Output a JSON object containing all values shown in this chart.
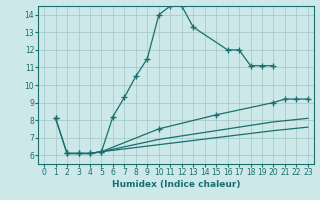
{
  "xlabel": "Humidex (Indice chaleur)",
  "xlim": [
    -0.5,
    23.5
  ],
  "ylim": [
    5.5,
    14.5
  ],
  "xticks": [
    0,
    1,
    2,
    3,
    4,
    5,
    6,
    7,
    8,
    9,
    10,
    11,
    12,
    13,
    14,
    15,
    16,
    17,
    18,
    19,
    20,
    21,
    22,
    23
  ],
  "yticks": [
    6,
    7,
    8,
    9,
    10,
    11,
    12,
    13,
    14
  ],
  "bg_color": "#cce8e8",
  "grid_color": "#aacccc",
  "line_color": "#1a6e6e",
  "lines": [
    {
      "x": [
        1,
        2,
        3,
        4,
        5,
        6,
        7,
        8,
        9,
        10,
        11,
        12,
        13,
        16,
        17,
        18,
        19,
        20
      ],
      "y": [
        8.1,
        6.1,
        6.1,
        6.1,
        6.2,
        8.2,
        9.3,
        10.5,
        11.5,
        14.0,
        14.5,
        14.5,
        13.3,
        12.0,
        12.0,
        11.1,
        11.1,
        11.1
      ],
      "marker": true
    },
    {
      "x": [
        1,
        2,
        3,
        4,
        5,
        10,
        15,
        20,
        21,
        22,
        23
      ],
      "y": [
        8.1,
        6.1,
        6.1,
        6.1,
        6.2,
        7.5,
        8.3,
        9.0,
        9.2,
        9.2,
        9.2
      ],
      "marker": true
    },
    {
      "x": [
        2,
        3,
        4,
        5,
        10,
        15,
        20,
        23
      ],
      "y": [
        6.1,
        6.1,
        6.1,
        6.2,
        6.9,
        7.4,
        7.9,
        8.1
      ],
      "marker": false
    },
    {
      "x": [
        2,
        3,
        4,
        5,
        10,
        15,
        20,
        23
      ],
      "y": [
        6.1,
        6.1,
        6.1,
        6.2,
        6.6,
        7.0,
        7.4,
        7.6
      ],
      "marker": false
    }
  ]
}
